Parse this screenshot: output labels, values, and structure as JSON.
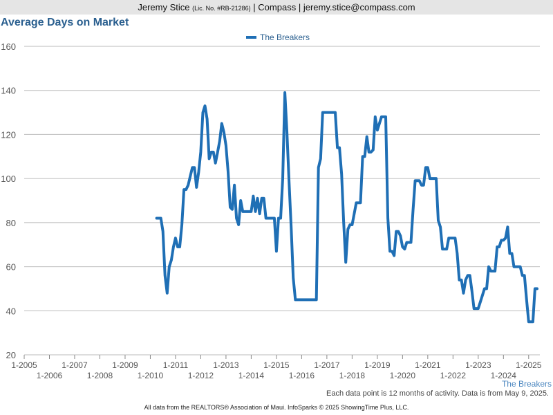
{
  "header": {
    "name": "Jeremy Stice",
    "license": "(Lic. No. #RB-21286)",
    "sep1": "|",
    "company": "Compass",
    "sep2": "|",
    "email": "jeremy.stice@compass.com"
  },
  "colors": {
    "series": "#1f6fb5",
    "title": "#2a5f8f",
    "grid": "#bbbbbb"
  },
  "chart_data": {
    "type": "line",
    "title": "Average Days on Market",
    "legend_position": "top-center",
    "grid": true,
    "ylim": [
      20,
      160
    ],
    "yticks": [
      20,
      40,
      60,
      80,
      100,
      120,
      140,
      160
    ],
    "xlim": [
      "2005-01",
      "2025-06"
    ],
    "xticks_upper": [
      "1-2005",
      "1-2007",
      "1-2009",
      "1-2011",
      "1-2013",
      "1-2015",
      "1-2017",
      "1-2019",
      "1-2021",
      "1-2023",
      "1-2025"
    ],
    "xticks_lower": [
      "1-2006",
      "1-2008",
      "1-2010",
      "1-2012",
      "1-2014",
      "1-2016",
      "1-2018",
      "1-2020",
      "1-2022",
      "1-2024"
    ],
    "bottom_label": "The Breakers",
    "series": [
      {
        "name": "The Breakers",
        "points": [
          [
            "2010-04",
            82
          ],
          [
            "2010-06",
            82
          ],
          [
            "2010-07",
            76
          ],
          [
            "2010-08",
            56
          ],
          [
            "2010-09",
            48
          ],
          [
            "2010-10",
            60
          ],
          [
            "2010-11",
            63
          ],
          [
            "2010-12",
            69
          ],
          [
            "2011-01",
            73
          ],
          [
            "2011-02",
            69
          ],
          [
            "2011-03",
            69
          ],
          [
            "2011-04",
            79
          ],
          [
            "2011-05",
            95
          ],
          [
            "2011-06",
            95
          ],
          [
            "2011-07",
            97
          ],
          [
            "2011-08",
            101
          ],
          [
            "2011-09",
            105
          ],
          [
            "2011-10",
            105
          ],
          [
            "2011-11",
            96
          ],
          [
            "2011-12",
            103
          ],
          [
            "2012-01",
            112
          ],
          [
            "2012-02",
            130
          ],
          [
            "2012-03",
            133
          ],
          [
            "2012-04",
            127
          ],
          [
            "2012-05",
            109
          ],
          [
            "2012-06",
            112
          ],
          [
            "2012-07",
            112
          ],
          [
            "2012-08",
            107
          ],
          [
            "2012-09",
            112
          ],
          [
            "2012-10",
            117
          ],
          [
            "2012-11",
            125
          ],
          [
            "2012-12",
            121
          ],
          [
            "2013-01",
            115
          ],
          [
            "2013-02",
            103
          ],
          [
            "2013-03",
            87
          ],
          [
            "2013-04",
            86
          ],
          [
            "2013-05",
            97
          ],
          [
            "2013-06",
            82
          ],
          [
            "2013-07",
            79
          ],
          [
            "2013-08",
            90
          ],
          [
            "2013-09",
            85
          ],
          [
            "2013-10",
            85
          ],
          [
            "2013-11",
            85
          ],
          [
            "2013-12",
            85
          ],
          [
            "2014-01",
            85
          ],
          [
            "2014-02",
            92
          ],
          [
            "2014-03",
            85
          ],
          [
            "2014-04",
            91
          ],
          [
            "2014-05",
            84
          ],
          [
            "2014-06",
            91
          ],
          [
            "2014-07",
            91
          ],
          [
            "2014-08",
            82
          ],
          [
            "2014-09",
            82
          ],
          [
            "2014-10",
            82
          ],
          [
            "2014-11",
            82
          ],
          [
            "2014-12",
            82
          ],
          [
            "2015-01",
            67
          ],
          [
            "2015-02",
            82
          ],
          [
            "2015-03",
            82
          ],
          [
            "2015-04",
            100
          ],
          [
            "2015-05",
            139
          ],
          [
            "2015-06",
            121
          ],
          [
            "2015-07",
            99
          ],
          [
            "2015-08",
            78
          ],
          [
            "2015-09",
            55
          ],
          [
            "2015-10",
            45
          ],
          [
            "2015-11",
            45
          ],
          [
            "2015-12",
            45
          ],
          [
            "2016-01",
            45
          ],
          [
            "2016-02",
            45
          ],
          [
            "2016-03",
            45
          ],
          [
            "2016-04",
            45
          ],
          [
            "2016-05",
            45
          ],
          [
            "2016-06",
            45
          ],
          [
            "2016-07",
            45
          ],
          [
            "2016-08",
            45
          ],
          [
            "2016-09",
            105
          ],
          [
            "2016-10",
            109
          ],
          [
            "2016-11",
            130
          ],
          [
            "2016-12",
            130
          ],
          [
            "2017-01",
            130
          ],
          [
            "2017-02",
            130
          ],
          [
            "2017-03",
            130
          ],
          [
            "2017-04",
            130
          ],
          [
            "2017-05",
            130
          ],
          [
            "2017-06",
            114
          ],
          [
            "2017-07",
            114
          ],
          [
            "2017-08",
            102
          ],
          [
            "2017-09",
            80
          ],
          [
            "2017-10",
            62
          ],
          [
            "2017-11",
            77
          ],
          [
            "2017-12",
            79
          ],
          [
            "2018-01",
            79
          ],
          [
            "2018-02",
            84
          ],
          [
            "2018-03",
            89
          ],
          [
            "2018-04",
            89
          ],
          [
            "2018-05",
            89
          ],
          [
            "2018-06",
            110
          ],
          [
            "2018-07",
            110
          ],
          [
            "2018-08",
            119
          ],
          [
            "2018-09",
            112
          ],
          [
            "2018-10",
            112
          ],
          [
            "2018-11",
            113
          ],
          [
            "2018-12",
            128
          ],
          [
            "2019-01",
            122
          ],
          [
            "2019-02",
            125
          ],
          [
            "2019-03",
            128
          ],
          [
            "2019-04",
            128
          ],
          [
            "2019-05",
            128
          ],
          [
            "2019-06",
            82
          ],
          [
            "2019-07",
            67
          ],
          [
            "2019-08",
            67
          ],
          [
            "2019-09",
            65
          ],
          [
            "2019-10",
            76
          ],
          [
            "2019-11",
            76
          ],
          [
            "2019-12",
            74
          ],
          [
            "2020-01",
            69
          ],
          [
            "2020-02",
            68
          ],
          [
            "2020-03",
            71
          ],
          [
            "2020-04",
            71
          ],
          [
            "2020-05",
            71
          ],
          [
            "2020-06",
            86
          ],
          [
            "2020-07",
            99
          ],
          [
            "2020-08",
            99
          ],
          [
            "2020-09",
            99
          ],
          [
            "2020-10",
            97
          ],
          [
            "2020-11",
            97
          ],
          [
            "2020-12",
            105
          ],
          [
            "2021-01",
            105
          ],
          [
            "2021-02",
            100
          ],
          [
            "2021-03",
            100
          ],
          [
            "2021-04",
            100
          ],
          [
            "2021-05",
            100
          ],
          [
            "2021-06",
            81
          ],
          [
            "2021-07",
            78
          ],
          [
            "2021-08",
            68
          ],
          [
            "2021-09",
            68
          ],
          [
            "2021-10",
            68
          ],
          [
            "2021-11",
            73
          ],
          [
            "2021-12",
            73
          ],
          [
            "2022-01",
            73
          ],
          [
            "2022-02",
            73
          ],
          [
            "2022-03",
            66
          ],
          [
            "2022-04",
            54
          ],
          [
            "2022-05",
            54
          ],
          [
            "2022-06",
            48
          ],
          [
            "2022-07",
            54
          ],
          [
            "2022-08",
            56
          ],
          [
            "2022-09",
            56
          ],
          [
            "2022-10",
            49
          ],
          [
            "2022-11",
            41
          ],
          [
            "2022-12",
            41
          ],
          [
            "2023-01",
            41
          ],
          [
            "2023-02",
            44
          ],
          [
            "2023-03",
            47
          ],
          [
            "2023-04",
            50
          ],
          [
            "2023-05",
            50
          ],
          [
            "2023-06",
            60
          ],
          [
            "2023-07",
            58
          ],
          [
            "2023-08",
            58
          ],
          [
            "2023-09",
            58
          ],
          [
            "2023-10",
            69
          ],
          [
            "2023-11",
            69
          ],
          [
            "2023-12",
            72
          ],
          [
            "2024-01",
            72
          ],
          [
            "2024-02",
            73
          ],
          [
            "2024-03",
            78
          ],
          [
            "2024-04",
            66
          ],
          [
            "2024-05",
            66
          ],
          [
            "2024-06",
            60
          ],
          [
            "2024-07",
            60
          ],
          [
            "2024-08",
            60
          ],
          [
            "2024-09",
            60
          ],
          [
            "2024-10",
            56
          ],
          [
            "2024-11",
            56
          ],
          [
            "2024-12",
            45
          ],
          [
            "2025-01",
            35
          ],
          [
            "2025-02",
            35
          ],
          [
            "2025-03",
            35
          ],
          [
            "2025-04",
            50
          ],
          [
            "2025-05",
            50
          ]
        ]
      }
    ]
  },
  "footnote": "Each data point is 12 months of activity. Data is from May 9, 2025.",
  "credits": "All data from the REALTORS® Association of Maui. InfoSparks © 2025 ShowingTime Plus, LLC."
}
